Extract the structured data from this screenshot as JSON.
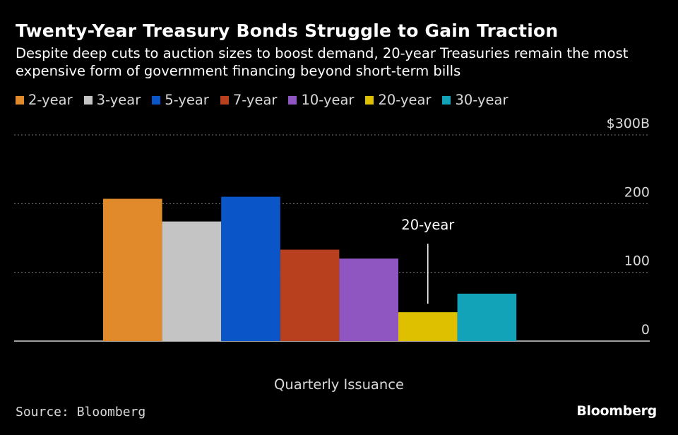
{
  "header": {
    "title": "Twenty-Year Treasury Bonds Struggle to Gain Traction",
    "subtitle": "Despite deep cuts to auction sizes to boost demand, 20-year Treasuries remain the most expensive form of government financing beyond short-term bills"
  },
  "footer": {
    "source": "Source: Bloomberg",
    "logo": "Bloomberg"
  },
  "colors": {
    "background": "#000000",
    "grid": "#777777",
    "axis": "#ffffff"
  },
  "chart_data": {
    "type": "bar",
    "title": "Twenty-Year Treasury Bonds Struggle to Gain Traction",
    "subtitle": "Despite deep cuts to auction sizes to boost demand, 20-year Treasuries remain the most expensive form of government financing beyond short-term bills",
    "xlabel": "Quarterly Issuance",
    "ylabel": "",
    "ylim": [
      0,
      300
    ],
    "yticks": [
      0,
      100,
      200,
      300
    ],
    "ytick_labels": [
      "0",
      "100",
      "200",
      "$300B"
    ],
    "grid": true,
    "legend_position": "top-left",
    "categories": [
      "2-year",
      "3-year",
      "5-year",
      "7-year",
      "10-year",
      "20-year",
      "30-year"
    ],
    "values": [
      207,
      174,
      210,
      133,
      120,
      42,
      69
    ],
    "colors": [
      "#e08a2c",
      "#c4c4c4",
      "#0a55c8",
      "#b8401f",
      "#8f55c0",
      "#dfc000",
      "#13a3b8"
    ],
    "annotations": [
      {
        "text": "20-year",
        "target": "20-year"
      }
    ]
  }
}
